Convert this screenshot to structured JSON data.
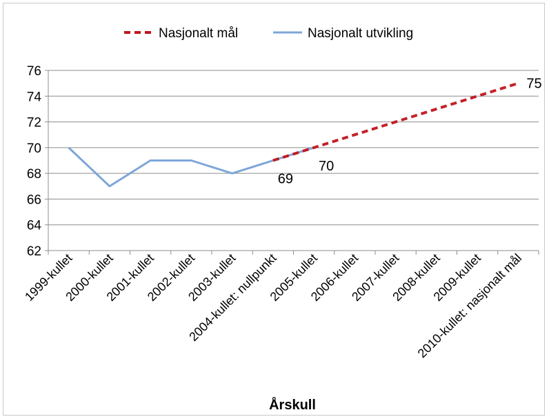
{
  "chart_data": {
    "type": "line",
    "title": "",
    "xlabel": "Årskull",
    "ylabel": "",
    "ylim": [
      62,
      76
    ],
    "y_ticks": [
      "62",
      "64",
      "66",
      "68",
      "70",
      "72",
      "74",
      "76"
    ],
    "grid": "horizontal",
    "legend_position": "top",
    "categories": [
      "1999-kullet",
      "2000-kullet",
      "2001-kullet",
      "2002-kullet",
      "2003-kullet",
      "2004-kullet: nullpunkt",
      "2005-kullet",
      "2006-kullet",
      "2007-kullet",
      "2008-kullet",
      "2009-kullet",
      "2010-kullet: nasjonalt mål"
    ],
    "series": [
      {
        "name": "Nasjonalt mål",
        "color": "#c0151b",
        "style": "dashed",
        "values": [
          null,
          null,
          null,
          null,
          null,
          69,
          70,
          71,
          72,
          73,
          74,
          75
        ]
      },
      {
        "name": "Nasjonalt utvikling",
        "color": "#7ea6d8",
        "style": "solid",
        "values": [
          70,
          67,
          69,
          69,
          68,
          69,
          70,
          null,
          null,
          null,
          null,
          null
        ]
      }
    ],
    "data_labels": [
      {
        "category_index": 5,
        "value": 69,
        "text": "69"
      },
      {
        "category_index": 6,
        "value": 70,
        "text": "70"
      },
      {
        "category_index": 11,
        "value": 75,
        "text": "75"
      }
    ]
  }
}
